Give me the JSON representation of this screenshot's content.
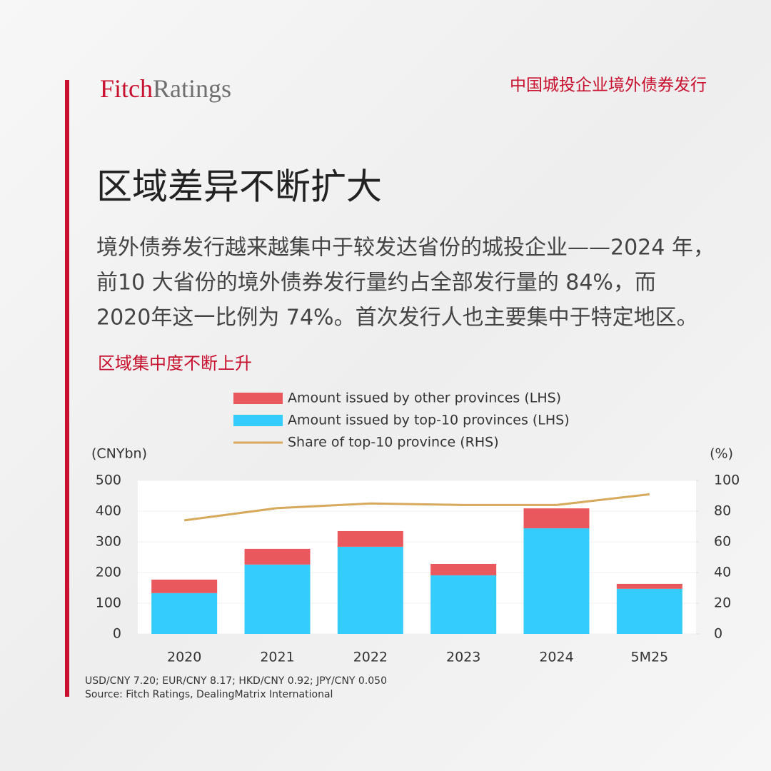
{
  "header": {
    "logo_part1": "Fitch",
    "logo_part2": "Ratings",
    "topic": "中国城投企业境外债券发行"
  },
  "title": "区域差异不断扩大",
  "paragraph": [
    "境外债券发行越来越集中于较发达省份的城投企业——2024 年，",
    "前10 大省份的境外债券发行量约占全部发行量的 84%，而",
    "2020年这一比例为 74%。首次发行人也主要集中于特定地区。"
  ],
  "chart_data": {
    "type": "bar",
    "stacked": true,
    "title": "区域集中度不断上升",
    "ylabel": "(CNYbn)",
    "y2label": "(%)",
    "categories": [
      "2020",
      "2021",
      "2022",
      "2023",
      "2024",
      "5M25"
    ],
    "series": [
      {
        "name": "Amount issued by other provinces (LHS)",
        "type": "bar",
        "color": "#e8585c",
        "values": [
          44,
          51,
          51,
          37,
          65,
          16
        ]
      },
      {
        "name": "Amount issued by top-10 provinces (LHS)",
        "type": "bar",
        "color": "#33ccfb",
        "values": [
          133,
          226,
          284,
          191,
          344,
          147
        ]
      },
      {
        "name": "Share of top-10 province (RHS)",
        "type": "line",
        "axis": "y2",
        "color": "#d6a95c",
        "values": [
          74,
          82,
          85,
          84,
          84,
          91
        ]
      }
    ],
    "ylim": [
      0,
      500
    ],
    "yticks": [
      0,
      100,
      200,
      300,
      400,
      500
    ],
    "y2lim": [
      0,
      100
    ],
    "y2ticks": [
      0,
      20,
      40,
      60,
      80,
      100
    ],
    "grid": true,
    "legend": "top",
    "notes": [
      "USD/CNY 7.20; EUR/CNY 8.17; HKD/CNY 0.92; JPY/CNY 0.050",
      "Source: Fitch Ratings, DealingMatrix International"
    ]
  }
}
